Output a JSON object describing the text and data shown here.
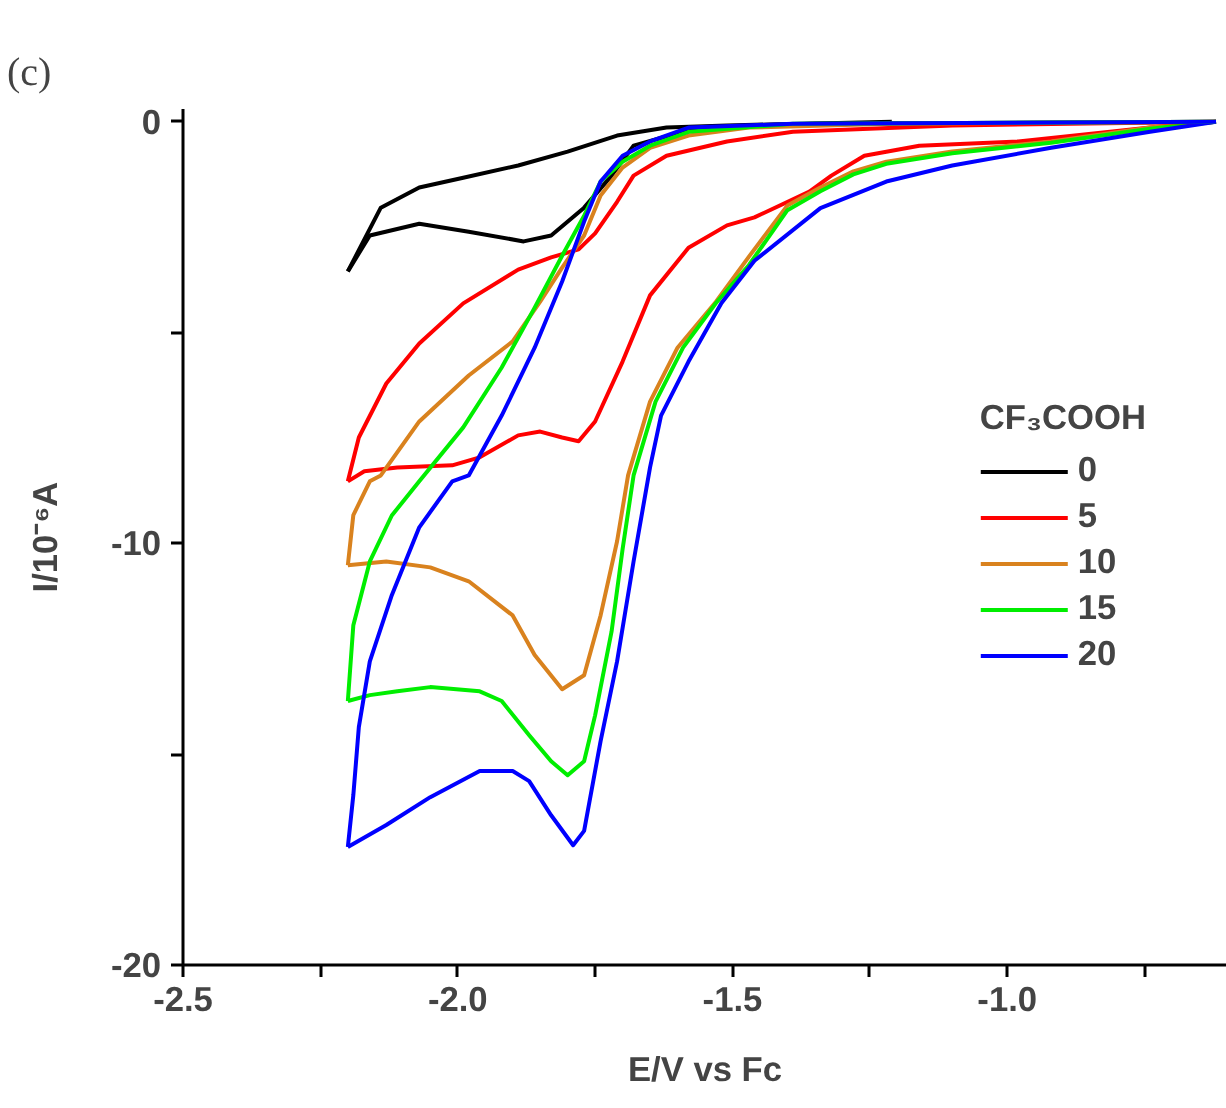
{
  "chart_data": {
    "type": "line",
    "title": "(c)",
    "xlabel": "E/V vs Fc",
    "ylabel": "I/10⁻⁶A",
    "legend_title": "CF₃COOH",
    "legend": "right",
    "grid": false,
    "line_style": "solid",
    "marker": "none",
    "xlim": [
      -2.5,
      -0.6
    ],
    "ylim": [
      -20,
      0.3
    ],
    "xticks": [
      -2.5,
      {
        "value": -2.25,
        "label": null
      },
      {
        "value": -2.0,
        "label": "-2.0"
      },
      {
        "value": -1.75,
        "label": null
      },
      -1.5,
      {
        "value": -1.25,
        "label": null
      },
      {
        "value": -1.0,
        "label": "-1.0"
      },
      {
        "value": -0.75,
        "label": null
      }
    ],
    "yticks": [
      -20,
      {
        "value": -15,
        "label": null
      },
      -10,
      {
        "value": -5,
        "label": null
      },
      0
    ],
    "series": [
      {
        "name": "0",
        "color": "#000000",
        "x": [
          -2.2,
          -2.16,
          -2.07,
          -1.98,
          -1.88,
          -1.83,
          -1.77,
          -1.72,
          -1.68,
          -1.59,
          -1.47,
          -1.35,
          -0.62
        ],
        "values": [
          -3.55,
          -2.7,
          -2.42,
          -2.61,
          -2.84,
          -2.7,
          -2.04,
          -1.28,
          -0.57,
          -0.24,
          -0.09,
          -0.05,
          0
        ]
      },
      {
        "name": "5",
        "color": "#ff0000",
        "x": [
          -2.2,
          -2.17,
          -2.11,
          -2.01,
          -1.96,
          -1.89,
          -1.85,
          -1.81,
          -1.78,
          -1.75,
          -1.7,
          -1.65,
          -1.58,
          -1.51,
          -1.46,
          -1.36,
          -1.32,
          -1.26,
          -1.16,
          -0.98,
          -0.74,
          -0.62
        ],
        "values": [
          -8.53,
          -8.29,
          -8.2,
          -8.15,
          -7.96,
          -7.44,
          -7.35,
          -7.49,
          -7.58,
          -7.11,
          -5.69,
          -4.12,
          -2.99,
          -2.46,
          -2.27,
          -1.66,
          -1.28,
          -0.81,
          -0.57,
          -0.47,
          -0.14,
          0
        ]
      },
      {
        "name": "10",
        "color": "#d9821e",
        "x": [
          -2.2,
          -2.13,
          -2.05,
          -1.98,
          -1.9,
          -1.86,
          -1.81,
          -1.77,
          -1.74,
          -1.71,
          -1.69,
          -1.65,
          -1.6,
          -1.53,
          -1.47,
          -1.4,
          -1.34,
          -1.28,
          -1.22,
          -1.1,
          -0.92,
          -0.74,
          -0.62
        ],
        "values": [
          -10.52,
          -10.43,
          -10.57,
          -10.9,
          -11.71,
          -12.65,
          -13.46,
          -13.13,
          -11.71,
          -9.95,
          -8.39,
          -6.64,
          -5.36,
          -4.27,
          -3.2,
          -1.99,
          -1.56,
          -1.18,
          -0.95,
          -0.71,
          -0.47,
          -0.14,
          0
        ]
      },
      {
        "name": "15",
        "color": "#00ee00",
        "x": [
          -2.2,
          -2.16,
          -2.11,
          -2.05,
          -1.96,
          -1.92,
          -1.87,
          -1.83,
          -1.8,
          -1.77,
          -1.75,
          -1.72,
          -1.7,
          -1.68,
          -1.64,
          -1.59,
          -1.53,
          -1.47,
          -1.4,
          -1.34,
          -1.28,
          -1.22,
          -1.1,
          -0.92,
          -0.74,
          -0.62
        ],
        "values": [
          -13.74,
          -13.6,
          -13.51,
          -13.41,
          -13.51,
          -13.74,
          -14.55,
          -15.17,
          -15.5,
          -15.17,
          -14.08,
          -12.09,
          -10.14,
          -8.39,
          -6.64,
          -5.36,
          -4.3,
          -3.4,
          -2.1,
          -1.65,
          -1.25,
          -1.0,
          -0.75,
          -0.5,
          -0.17,
          0
        ]
      },
      {
        "name": "20",
        "color": "#0000ff",
        "x": [
          -2.2,
          -2.13,
          -2.05,
          -1.96,
          -1.9,
          -1.87,
          -1.83,
          -1.79,
          -1.77,
          -1.74,
          -1.71,
          -1.68,
          -1.65,
          -1.63,
          -1.58,
          -1.52,
          -1.46,
          -1.34,
          -1.22,
          -1.1,
          -0.92,
          -0.74,
          -0.62
        ],
        "values": [
          -17.2,
          -16.68,
          -16.02,
          -15.4,
          -15.4,
          -15.64,
          -16.45,
          -17.16,
          -16.82,
          -14.69,
          -12.8,
          -10.43,
          -8.2,
          -6.97,
          -5.69,
          -4.3,
          -3.3,
          -2.05,
          -1.42,
          -1.04,
          -0.62,
          -0.24,
          0
        ]
      },
      {
        "color": "#000000",
        "x": [
          -2.2,
          -2.14,
          -2.07,
          -1.99,
          -1.89,
          -1.8,
          -1.71,
          -1.62,
          -1.51,
          -1.21
        ],
        "values": [
          -3.55,
          -2.04,
          -1.56,
          -1.33,
          -1.04,
          -0.71,
          -0.33,
          -0.14,
          -0.09,
          0
        ]
      },
      {
        "color": "#ff0000",
        "x": [
          -2.2,
          -2.18,
          -2.13,
          -2.07,
          -1.99,
          -1.89,
          -1.83,
          -1.78,
          -1.75,
          -1.71,
          -1.68,
          -1.62,
          -1.51,
          -1.39,
          -1.1,
          -0.62
        ],
        "values": [
          -8.53,
          -7.49,
          -6.21,
          -5.26,
          -4.31,
          -3.51,
          -3.22,
          -3.03,
          -2.65,
          -1.9,
          -1.28,
          -0.81,
          -0.47,
          -0.24,
          -0.09,
          0
        ]
      },
      {
        "color": "#d9821e",
        "x": [
          -2.2,
          -2.19,
          -2.16,
          -2.14,
          -2.07,
          -1.98,
          -1.9,
          -1.85,
          -1.81,
          -1.77,
          -1.74,
          -1.7,
          -1.65,
          -1.58,
          -1.47,
          -1.21,
          -0.62
        ],
        "values": [
          -10.52,
          -9.33,
          -8.53,
          -8.39,
          -7.11,
          -6.02,
          -5.21,
          -4.27,
          -3.46,
          -2.7,
          -1.75,
          -1.09,
          -0.62,
          -0.33,
          -0.14,
          -0.05,
          0
        ]
      },
      {
        "color": "#00ee00",
        "x": [
          -2.2,
          -2.19,
          -2.16,
          -2.12,
          -2.07,
          -1.99,
          -1.92,
          -1.86,
          -1.81,
          -1.77,
          -1.74,
          -1.7,
          -1.65,
          -1.58,
          -1.39,
          -0.62
        ],
        "values": [
          -13.74,
          -11.94,
          -10.43,
          -9.34,
          -8.53,
          -7.25,
          -5.83,
          -4.41,
          -3.18,
          -2.23,
          -1.42,
          -0.95,
          -0.57,
          -0.24,
          -0.05,
          0
        ]
      },
      {
        "color": "#0000ff",
        "x": [
          -2.2,
          -2.19,
          -2.18,
          -2.16,
          -2.12,
          -2.07,
          -2.01,
          -1.98,
          -1.92,
          -1.86,
          -1.81,
          -1.77,
          -1.74,
          -1.7,
          -1.65,
          -1.58,
          -1.39,
          -0.62
        ],
        "values": [
          -17.2,
          -15.97,
          -14.36,
          -12.8,
          -11.23,
          -9.62,
          -8.53,
          -8.39,
          -6.97,
          -5.36,
          -3.79,
          -2.37,
          -1.42,
          -0.81,
          -0.47,
          -0.14,
          -0.05,
          0
        ]
      }
    ]
  }
}
